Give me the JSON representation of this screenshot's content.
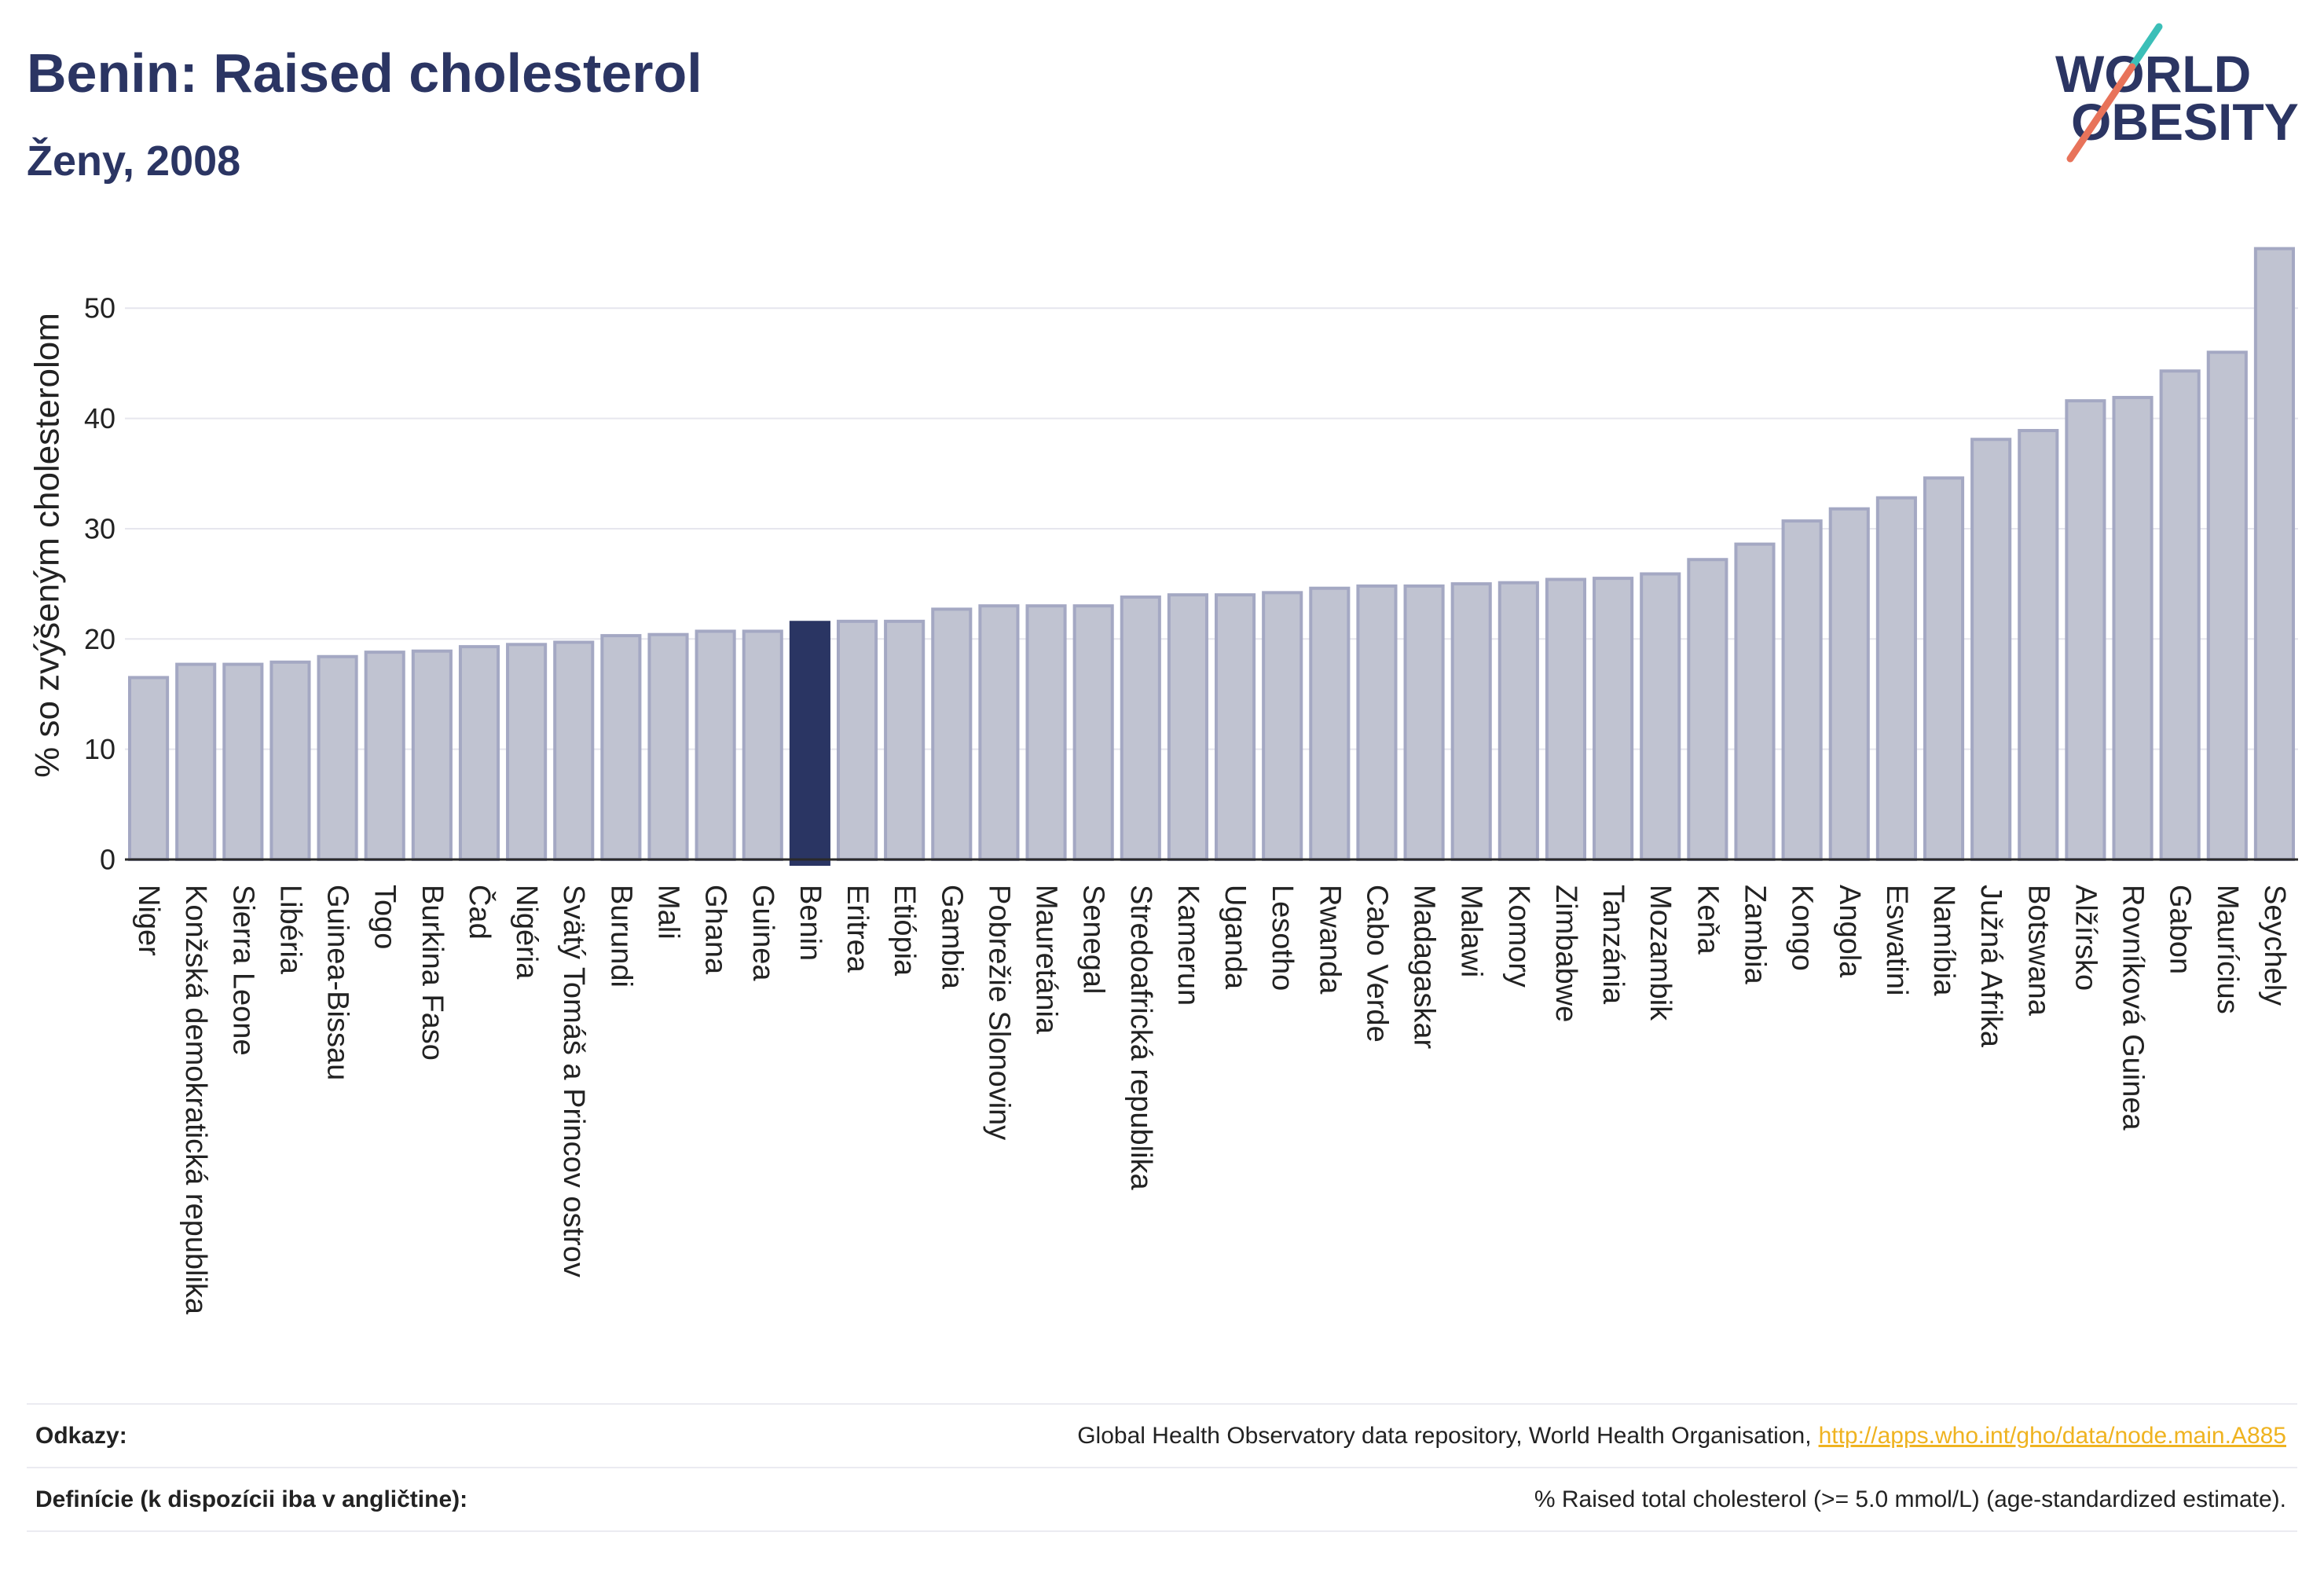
{
  "logo": {
    "line1": "WORLD",
    "line2": "OBESITY",
    "text_color": "#2b3563",
    "slash_top_color": "#3bbfb8",
    "slash_bottom_color": "#e8735a"
  },
  "chart_data": {
    "type": "bar",
    "title": "Benin: Raised cholesterol",
    "subtitle": "Ženy, 2008",
    "ylabel": "% so zvýšeným cholesterolom",
    "categories": [
      "Niger",
      "Konžská demokratická republika",
      "Sierra Leone",
      "Libéria",
      "Guinea-Bissau",
      "Togo",
      "Burkina Faso",
      "Čad",
      "Nigéria",
      "Svätý Tomáš a Princov ostrov",
      "Burundi",
      "Mali",
      "Ghana",
      "Guinea",
      "Benin",
      "Eritrea",
      "Etiópia",
      "Gambia",
      "Pobrežie Slonoviny",
      "Mauretánia",
      "Senegal",
      "Stredoafrická republika",
      "Kamerun",
      "Uganda",
      "Lesotho",
      "Rwanda",
      "Cabo Verde",
      "Madagaskar",
      "Malawi",
      "Komory",
      "Zimbabwe",
      "Tanzánia",
      "Mozambik",
      "Keňa",
      "Zambia",
      "Kongo",
      "Angola",
      "Eswatini",
      "Namíbia",
      "Južná Afrika",
      "Botswana",
      "Alžírsko",
      "Rovníková Guinea",
      "Gabon",
      "Maurícius",
      "Seychely"
    ],
    "values": [
      16.5,
      17.7,
      17.7,
      17.9,
      18.4,
      18.8,
      18.9,
      19.3,
      19.5,
      19.7,
      20.3,
      20.4,
      20.7,
      20.7,
      21.5,
      21.6,
      21.6,
      22.7,
      23.0,
      23.0,
      23.0,
      23.8,
      24.0,
      24.0,
      24.2,
      24.6,
      24.8,
      24.8,
      25.0,
      25.1,
      25.4,
      25.5,
      25.9,
      27.2,
      28.6,
      30.7,
      31.8,
      32.8,
      34.6,
      38.1,
      38.9,
      41.6,
      41.9,
      44.3,
      46.0,
      55.4
    ],
    "ylim": [
      0,
      57
    ],
    "yticks": [
      0,
      10,
      20,
      30,
      40,
      50
    ],
    "grid": true,
    "legend": "none",
    "highlight": "Benin",
    "colors": {
      "bar": "#c0c3d1",
      "bar_outline": "#a4a8c3",
      "highlight": "#2a3563"
    }
  },
  "footer": {
    "sources_label": "Odkazy:",
    "sources_text": "Global Health Observatory data repository, World Health Organisation,",
    "sources_link": "http://apps.who.int/gho/data/node.main.A885",
    "definition_label": "Definície (k dispozícii iba v angličtine):",
    "definition_text": "% Raised total cholesterol (>= 5.0 mmol/L) (age-standardized estimate).",
    "link_color": "#efb320"
  }
}
